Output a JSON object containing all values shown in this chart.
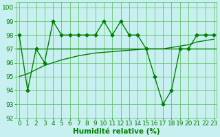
{
  "x": [
    0,
    1,
    2,
    3,
    4,
    5,
    6,
    7,
    8,
    9,
    10,
    11,
    12,
    13,
    14,
    15,
    16,
    17,
    18,
    19,
    20,
    21,
    22,
    23
  ],
  "line_main": [
    98,
    94,
    97,
    96,
    99,
    98,
    98,
    98,
    98,
    98,
    99,
    98,
    99,
    98,
    98,
    97,
    95,
    93,
    94,
    97,
    97,
    98,
    98,
    98
  ],
  "line_trend": [
    95.0,
    95.2,
    95.5,
    95.8,
    96.0,
    96.2,
    96.35,
    96.5,
    96.6,
    96.7,
    96.75,
    96.8,
    96.85,
    96.9,
    96.95,
    97.0,
    97.0,
    97.0,
    97.1,
    97.2,
    97.3,
    97.5,
    97.6,
    97.7
  ],
  "line_flat": 97.0,
  "color_main": "#008000",
  "color_trend": "#008000",
  "color_flat": "#008000",
  "bg_color": "#c8f0f0",
  "grid_color": "#55bb55",
  "ylim": [
    92,
    100.4
  ],
  "xlim": [
    -0.3,
    23.3
  ],
  "yticks": [
    92,
    93,
    94,
    95,
    96,
    97,
    98,
    99,
    100
  ],
  "xticks": [
    0,
    1,
    2,
    3,
    4,
    5,
    6,
    7,
    8,
    9,
    10,
    11,
    12,
    13,
    14,
    15,
    16,
    17,
    18,
    19,
    20,
    21,
    22,
    23
  ],
  "xlabel": "Humidité relative (%)",
  "xlabel_fontsize": 7.5,
  "tick_fontsize": 6.5,
  "line_width": 1.0,
  "marker": "D",
  "marker_size": 2.5
}
